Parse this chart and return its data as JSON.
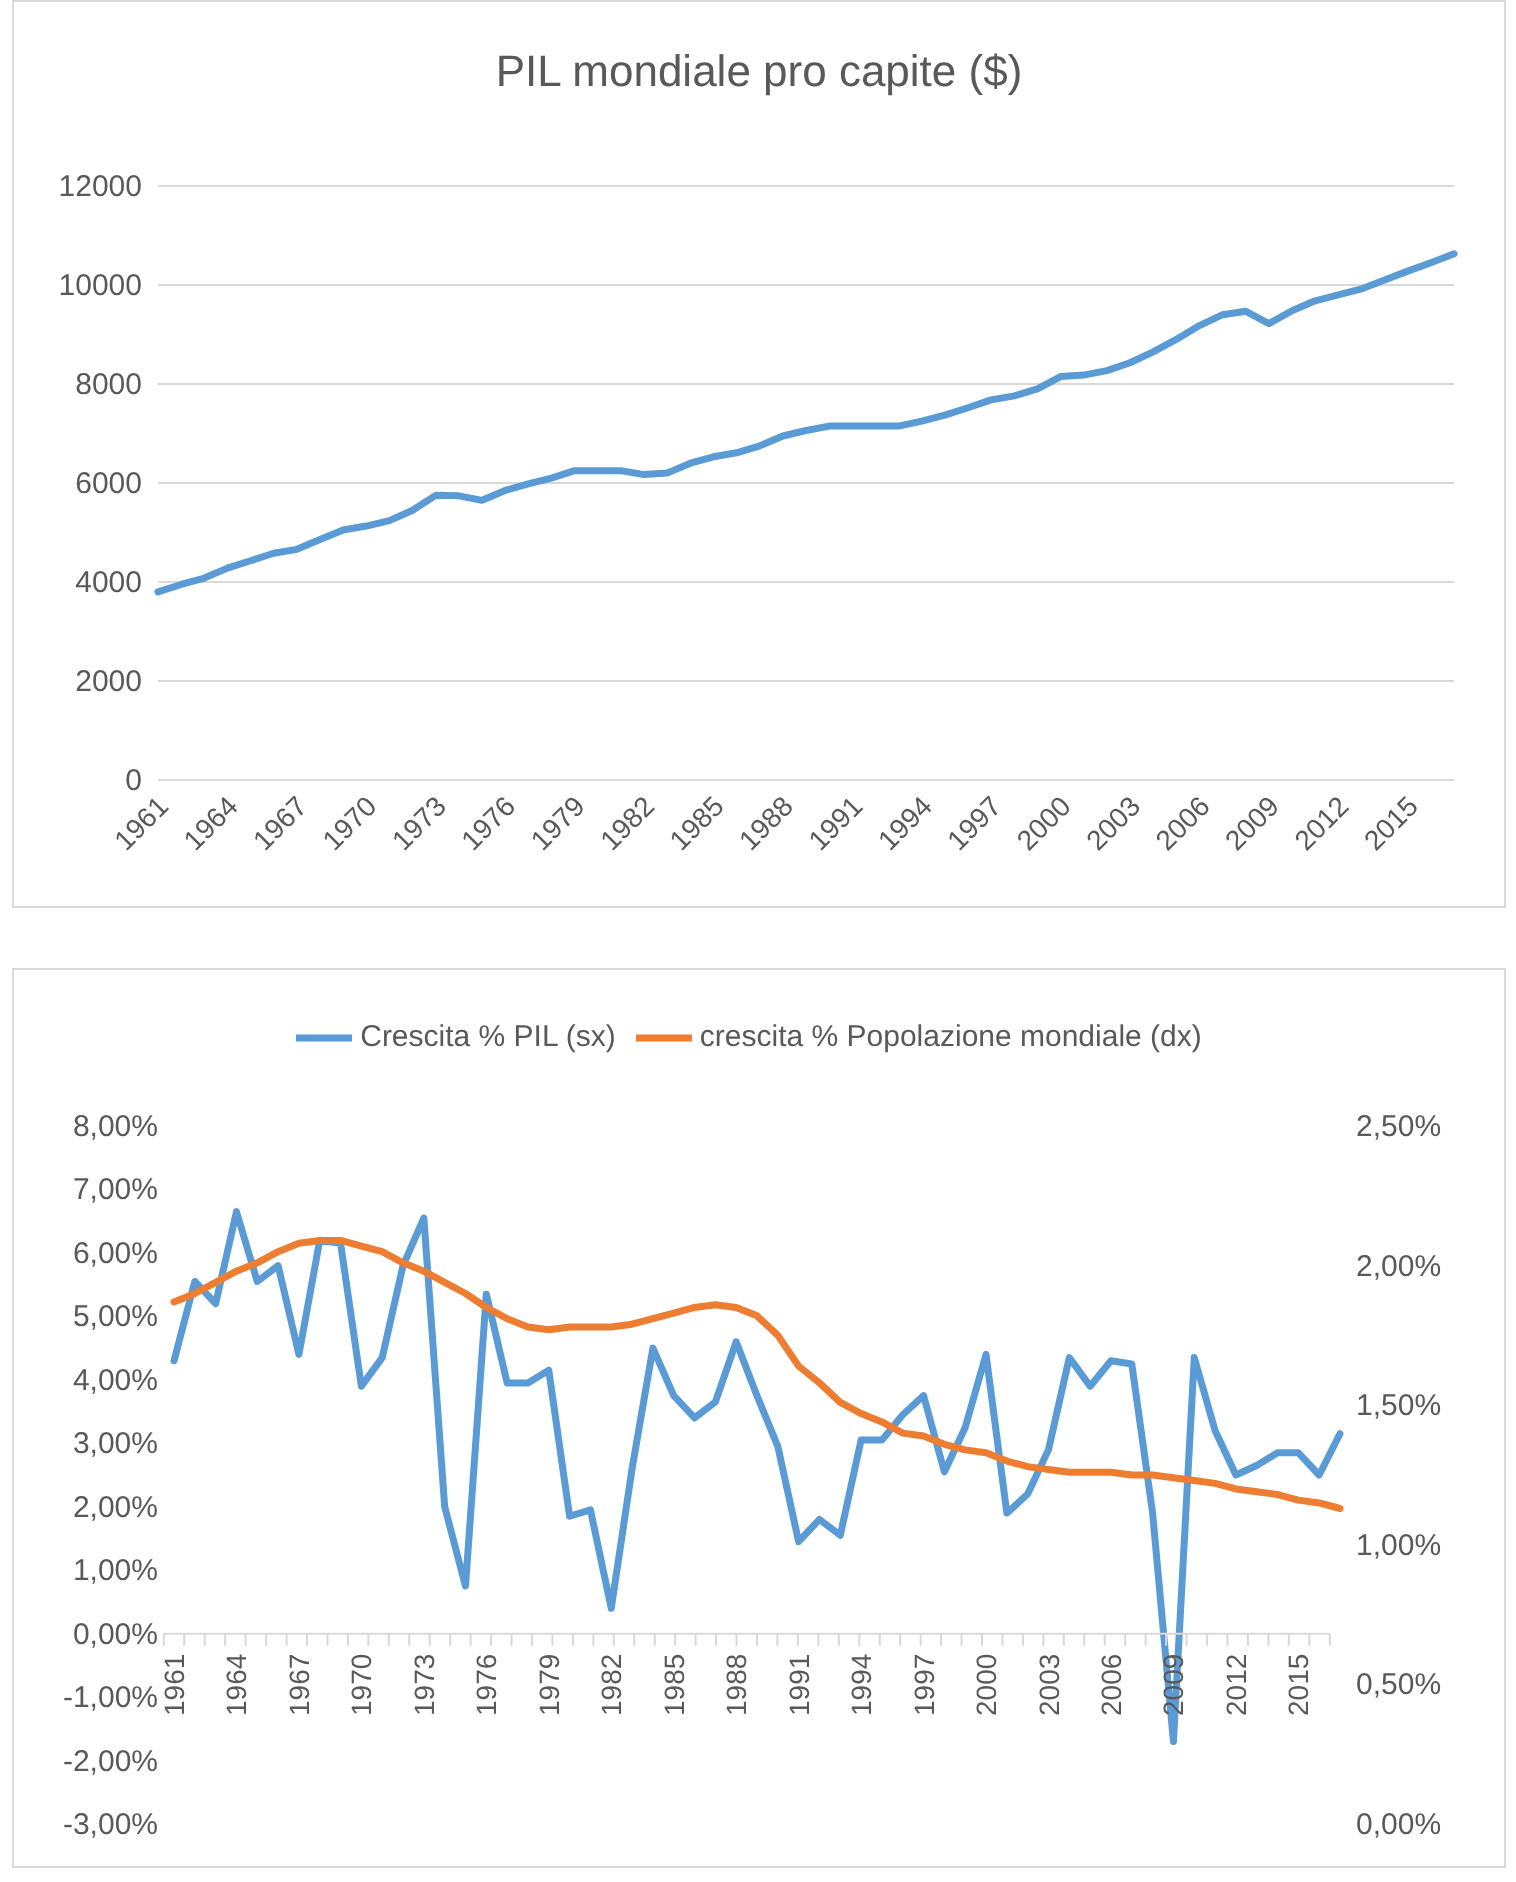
{
  "chart_data": [
    {
      "type": "line",
      "title": "PIL mondiale pro capite ($)",
      "categories": [
        "1961",
        null,
        null,
        "1964",
        null,
        null,
        "1967",
        null,
        null,
        "1970",
        null,
        null,
        "1973",
        null,
        null,
        "1976",
        null,
        null,
        "1979",
        null,
        null,
        "1982",
        null,
        null,
        "1985",
        null,
        null,
        "1988",
        null,
        null,
        "1991",
        null,
        null,
        "1994",
        null,
        null,
        "1997",
        null,
        null,
        "2000",
        null,
        null,
        "2003",
        null,
        null,
        "2006",
        null,
        null,
        "2009",
        null,
        null,
        "2012",
        null,
        null,
        "2015",
        null,
        null
      ],
      "series": [
        {
          "color": "#5b9bd5",
          "values": [
            3800,
            3950,
            4080,
            4280,
            4430,
            4580,
            4660,
            4860,
            5050,
            5130,
            5240,
            5450,
            5750,
            5740,
            5650,
            5850,
            5980,
            6100,
            6250,
            6250,
            6250,
            6170,
            6200,
            6400,
            6530,
            6610,
            6750,
            6950,
            7060,
            7150,
            7150,
            7150,
            7150,
            7250,
            7370,
            7520,
            7680,
            7760,
            7900,
            8150,
            8180,
            8270,
            8430,
            8650,
            8900,
            9180,
            9400,
            9470,
            9220,
            9480,
            9680,
            9800,
            9920,
            10100,
            10280,
            10450,
            10630
          ]
        }
      ],
      "ylim": [
        0,
        12000
      ],
      "yticks": [
        0,
        2000,
        4000,
        6000,
        8000,
        10000,
        12000
      ],
      "grid": "y",
      "marker": "none",
      "legend": false
    },
    {
      "type": "line",
      "categories": [
        "1961",
        null,
        null,
        "1964",
        null,
        null,
        "1967",
        null,
        null,
        "1970",
        null,
        null,
        "1973",
        null,
        null,
        "1976",
        null,
        null,
        "1979",
        null,
        null,
        "1982",
        null,
        null,
        "1985",
        null,
        null,
        "1988",
        null,
        null,
        "1991",
        null,
        null,
        "1994",
        null,
        null,
        "1997",
        null,
        null,
        "2000",
        null,
        null,
        "2003",
        null,
        null,
        "2006",
        null,
        null,
        "2009",
        null,
        null,
        "2012",
        null,
        null,
        "2015",
        null,
        null
      ],
      "series": [
        {
          "name": "Crescita % PIL (sx)",
          "color": "#5b9bd5",
          "values": [
            4.3,
            5.55,
            5.2,
            6.65,
            5.55,
            5.8,
            4.4,
            6.2,
            6.15,
            3.9,
            4.35,
            5.8,
            6.55,
            2.0,
            0.75,
            5.35,
            3.95,
            3.95,
            4.15,
            1.85,
            1.95,
            0.4,
            2.6,
            4.5,
            3.75,
            3.4,
            3.65,
            4.6,
            3.75,
            2.95,
            1.45,
            1.8,
            1.55,
            3.05,
            3.05,
            3.45,
            3.75,
            2.55,
            3.25,
            4.4,
            1.9,
            2.2,
            2.9,
            4.35,
            3.9,
            4.3,
            4.25,
            1.9,
            -1.7,
            4.35,
            3.2,
            2.5,
            2.65,
            2.85,
            2.85,
            2.5,
            3.15
          ]
        },
        {
          "name": "crescita % Popolazione mondiale (dx)",
          "color": "#ed7d31",
          "axis": "y2",
          "values": [
            1.87,
            1.9,
            1.94,
            1.98,
            2.01,
            2.05,
            2.08,
            2.09,
            2.09,
            2.07,
            2.05,
            2.01,
            1.98,
            1.94,
            1.9,
            1.85,
            1.81,
            1.78,
            1.77,
            1.78,
            1.78,
            1.78,
            1.79,
            1.81,
            1.83,
            1.85,
            1.86,
            1.85,
            1.82,
            1.75,
            1.64,
            1.58,
            1.51,
            1.47,
            1.44,
            1.4,
            1.39,
            1.36,
            1.34,
            1.33,
            1.3,
            1.28,
            1.27,
            1.26,
            1.26,
            1.26,
            1.25,
            1.25,
            1.24,
            1.23,
            1.22,
            1.2,
            1.19,
            1.18,
            1.16,
            1.15,
            1.13
          ]
        }
      ],
      "ylim": [
        -3,
        8
      ],
      "yticks": [
        {
          "value": -3,
          "label": "-3,00%"
        },
        {
          "value": -2,
          "label": "-2,00%"
        },
        {
          "value": -1,
          "label": "-1,00%"
        },
        {
          "value": 0,
          "label": "0,00%"
        },
        {
          "value": 1,
          "label": "1,00%"
        },
        {
          "value": 2,
          "label": "2,00%"
        },
        {
          "value": 3,
          "label": "3,00%"
        },
        {
          "value": 4,
          "label": "4,00%"
        },
        {
          "value": 5,
          "label": "5,00%"
        },
        {
          "value": 6,
          "label": "6,00%"
        },
        {
          "value": 7,
          "label": "7,00%"
        },
        {
          "value": 8,
          "label": "8,00%"
        }
      ],
      "y2lim": [
        0,
        2.5
      ],
      "y2ticks": [
        {
          "value": 0,
          "label": "0,00%"
        },
        {
          "value": 0.5,
          "label": "0,50%"
        },
        {
          "value": 1,
          "label": "1,00%"
        },
        {
          "value": 1.5,
          "label": "1,50%"
        },
        {
          "value": 2,
          "label": "2,00%"
        },
        {
          "value": 2.5,
          "label": "2,50%"
        }
      ],
      "grid": false,
      "marker": "none",
      "legend": "top"
    }
  ]
}
